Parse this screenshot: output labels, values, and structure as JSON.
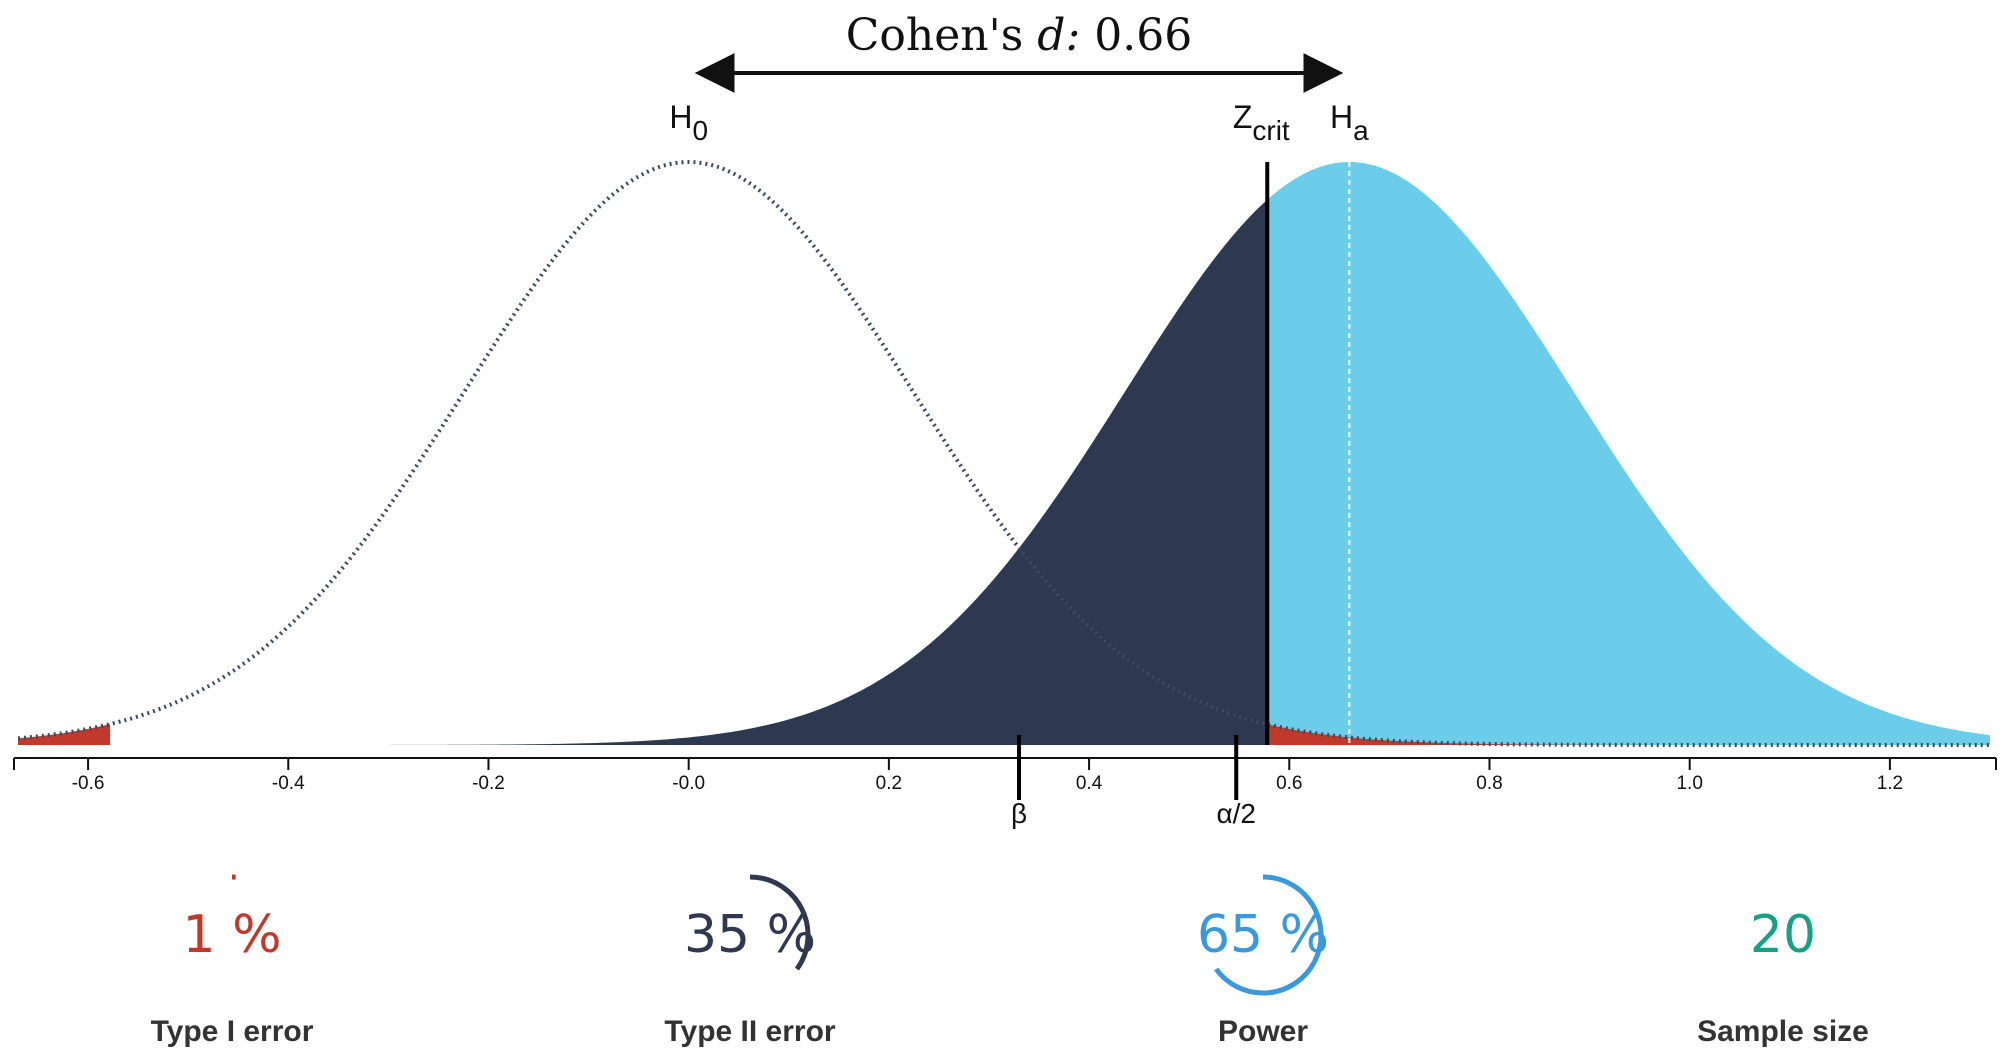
{
  "chart_data": {
    "type": "area",
    "title_prefix": "Cohen's ",
    "title_italic": "d:",
    "title_value": " 0.66",
    "effect_size_d": 0.66,
    "xlim": [
      -0.67,
      1.3
    ],
    "x_ticks": [
      -0.6,
      -0.4,
      -0.2,
      0.0,
      0.2,
      0.4,
      0.6,
      0.8,
      1.0,
      1.2
    ],
    "x_tick_labels": [
      "-0.6",
      "-0.4",
      "-0.2",
      "-0.0",
      "0.2",
      "0.4",
      "0.6",
      "0.8",
      "1.0",
      "1.2"
    ],
    "distributions": {
      "h0": {
        "label": "H",
        "subscript": "0",
        "mean": 0.0,
        "sd": 0.224,
        "style": "dotted"
      },
      "ha": {
        "label": "H",
        "subscript": "a",
        "mean": 0.66,
        "sd": 0.224,
        "style": "filled"
      }
    },
    "z_crit": {
      "label": "Z",
      "subscript": "crit",
      "value": 0.578
    },
    "markers": [
      {
        "label": "β",
        "value": 0.33
      },
      {
        "label": "α/2",
        "value": 0.547
      }
    ],
    "colors": {
      "type1": "#c0392b",
      "type2": "#2e3850",
      "power": "#6bcdea",
      "h0_line": "#3a4a62",
      "sample": "#16a085"
    }
  },
  "stats": [
    {
      "name": "type1",
      "value": "1 %",
      "label": "Type I error",
      "fraction": 0.01,
      "color": "#c0392b"
    },
    {
      "name": "type2",
      "value": "35 %",
      "label": "Type II error",
      "fraction": 0.35,
      "color": "#2e3850"
    },
    {
      "name": "power",
      "value": "65 %",
      "label": "Power",
      "fraction": 0.65,
      "color": "#3a98dc"
    },
    {
      "name": "sample-size",
      "value": "20",
      "label": "Sample size",
      "fraction": 0,
      "color": "#16a085"
    }
  ]
}
